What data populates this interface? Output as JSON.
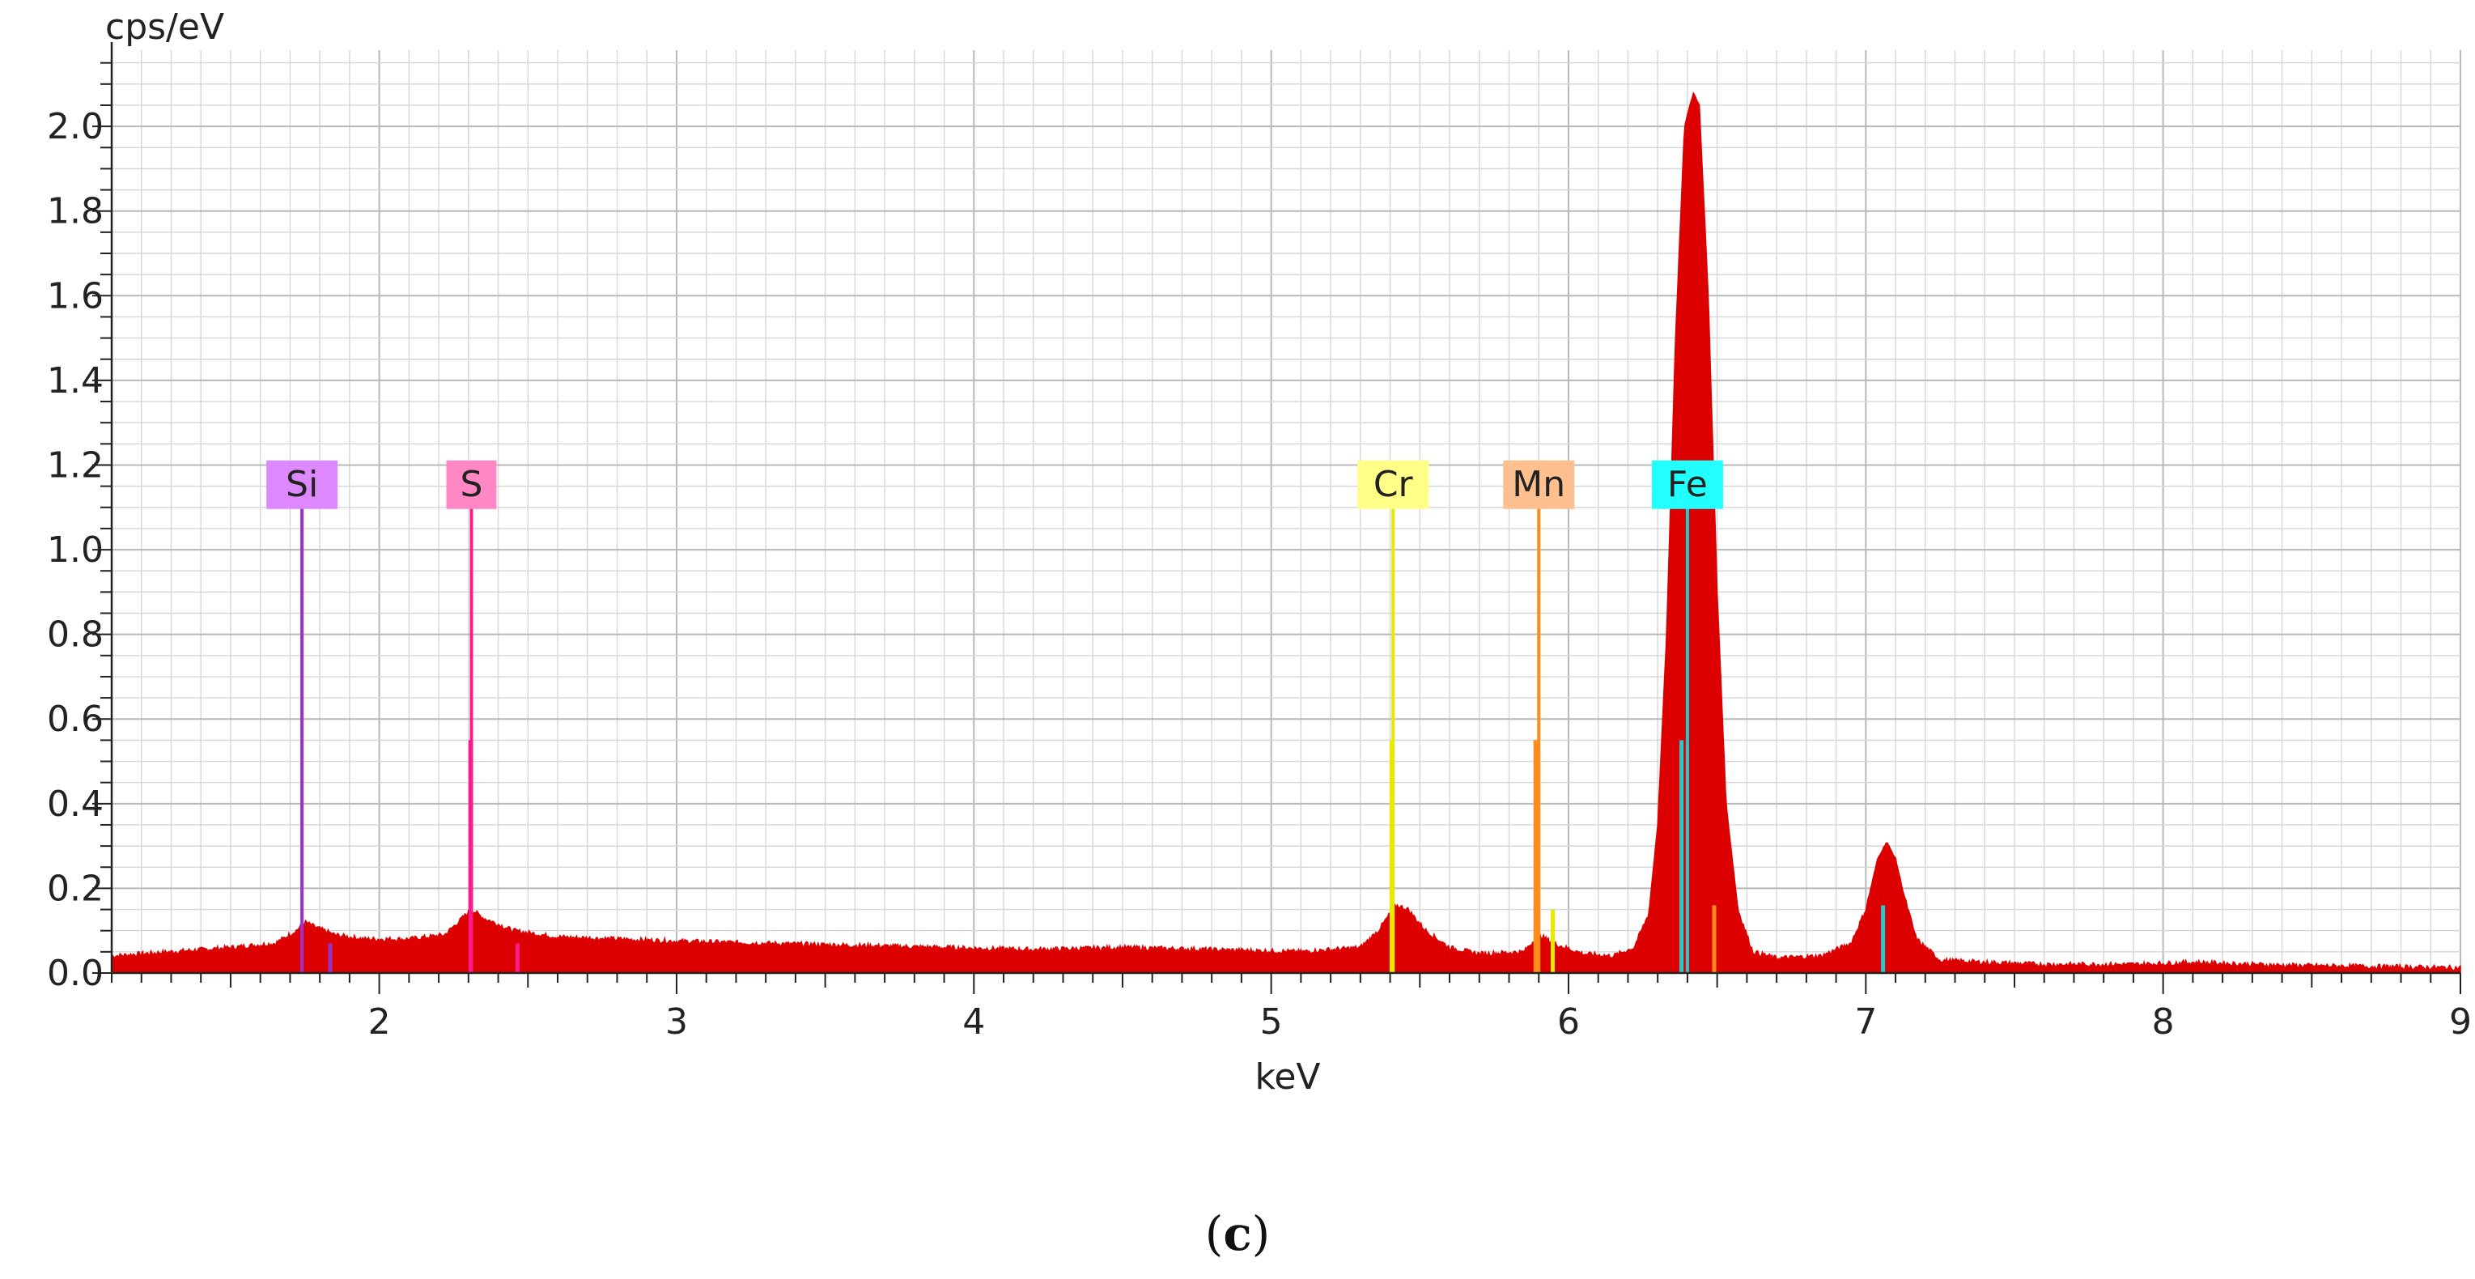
{
  "caption": {
    "open": "(",
    "letter": "c",
    "close": ")"
  },
  "chart_data": {
    "type": "area",
    "xlabel": "keV",
    "ylabel": "cps/eV",
    "xlim": [
      1.1,
      9.0
    ],
    "ylim": [
      0.0,
      2.18
    ],
    "x_ticks": [
      2,
      3,
      4,
      5,
      6,
      7,
      8,
      9
    ],
    "y_ticks": [
      "0.0",
      "0.2",
      "0.4",
      "0.6",
      "0.8",
      "1.0",
      "1.2",
      "1.4",
      "1.6",
      "1.8",
      "2.0"
    ],
    "grid": true,
    "fill_color": "#dd0000",
    "spectrum": {
      "x": [
        1.1,
        1.3,
        1.5,
        1.65,
        1.72,
        1.75,
        1.78,
        1.85,
        1.95,
        2.1,
        2.22,
        2.28,
        2.31,
        2.35,
        2.45,
        2.6,
        2.8,
        3.0,
        3.3,
        3.6,
        3.9,
        4.2,
        4.5,
        4.8,
        5.1,
        5.3,
        5.36,
        5.42,
        5.46,
        5.52,
        5.6,
        5.7,
        5.85,
        5.9,
        5.95,
        6.05,
        6.15,
        6.22,
        6.27,
        6.3,
        6.33,
        6.36,
        6.39,
        6.42,
        6.44,
        6.47,
        6.5,
        6.53,
        6.57,
        6.62,
        6.7,
        6.85,
        6.95,
        7.0,
        7.04,
        7.07,
        7.1,
        7.13,
        7.17,
        7.25,
        7.4,
        7.6,
        7.9,
        8.1,
        8.4,
        8.7,
        9.0
      ],
      "y": [
        0.04,
        0.05,
        0.06,
        0.07,
        0.1,
        0.12,
        0.11,
        0.09,
        0.08,
        0.08,
        0.09,
        0.13,
        0.15,
        0.13,
        0.1,
        0.085,
        0.08,
        0.075,
        0.07,
        0.065,
        0.06,
        0.055,
        0.06,
        0.055,
        0.05,
        0.06,
        0.1,
        0.16,
        0.15,
        0.1,
        0.06,
        0.045,
        0.05,
        0.09,
        0.07,
        0.045,
        0.04,
        0.06,
        0.14,
        0.35,
        0.8,
        1.5,
        2.0,
        2.08,
        2.05,
        1.6,
        0.9,
        0.4,
        0.15,
        0.05,
        0.035,
        0.04,
        0.07,
        0.15,
        0.27,
        0.31,
        0.27,
        0.18,
        0.08,
        0.03,
        0.025,
        0.02,
        0.02,
        0.025,
        0.018,
        0.015,
        0.012
      ]
    },
    "element_lines": [
      {
        "element": "Si",
        "energy": 1.74,
        "color": "#9933cc",
        "label_bg": "#dd88ff",
        "height": 1.1,
        "sub_lines": [
          {
            "x": 1.835,
            "y": 0.07
          }
        ]
      },
      {
        "element": "S",
        "energy": 2.31,
        "color": "#ff1a8c",
        "label_bg": "#ff88c4",
        "height": 1.1,
        "sub_lines": [
          {
            "x": 2.307,
            "y": 0.55
          },
          {
            "x": 2.465,
            "y": 0.07
          }
        ]
      },
      {
        "element": "Cr",
        "energy": 5.41,
        "color": "#e8e800",
        "label_bg": "#ffff88",
        "height": 1.1,
        "sub_lines": [
          {
            "x": 5.405,
            "y": 0.55
          },
          {
            "x": 5.947,
            "y": 0.15
          }
        ]
      },
      {
        "element": "Mn",
        "energy": 5.9,
        "color": "#ff8c1a",
        "label_bg": "#ffc090",
        "height": 1.1,
        "sub_lines": [
          {
            "x": 5.889,
            "y": 0.55
          },
          {
            "x": 6.49,
            "y": 0.16
          }
        ]
      },
      {
        "element": "Fe",
        "energy": 6.4,
        "color": "#22cccc",
        "label_bg": "#22ffff",
        "height": 1.1,
        "sub_lines": [
          {
            "x": 6.38,
            "y": 0.55
          },
          {
            "x": 7.058,
            "y": 0.16
          }
        ]
      }
    ]
  }
}
